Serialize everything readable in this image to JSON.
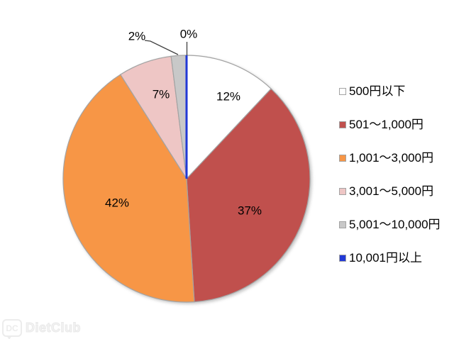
{
  "chart_data": {
    "type": "pie",
    "categories": [
      "500円以下",
      "501～1,000円",
      "1,001～3,000円",
      "3,001～5,000円",
      "5,001～10,000円",
      "10,001円以上"
    ],
    "values": [
      12,
      37,
      42,
      7,
      2,
      0
    ],
    "labels": [
      "12%",
      "37%",
      "42%",
      "7%",
      "2%",
      "0%"
    ],
    "colors": [
      "#FFFFFF",
      "#C0504D",
      "#F79646",
      "#EEC6C5",
      "#C8C8C8",
      "#2139D6"
    ],
    "title": "",
    "legend_position": "right",
    "direction": "clockwise",
    "start_angle_deg": 0,
    "border_color": "#A3A3A3",
    "leader_line_color": "#404040",
    "label_color": "#000000"
  },
  "watermark": {
    "logo_text": "DC",
    "brand_text": "DietClub"
  }
}
